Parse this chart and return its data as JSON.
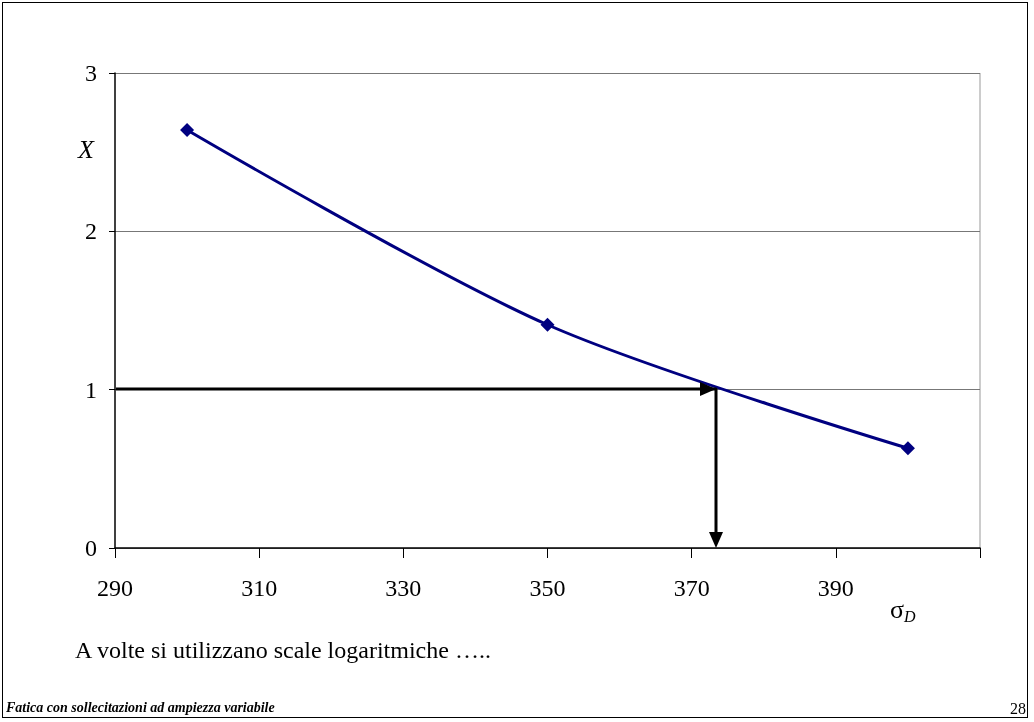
{
  "chart_data": {
    "type": "line",
    "xlabel": "σ$_{D}$",
    "ylabel": "X",
    "x": [
      300,
      350,
      400
    ],
    "series": [
      {
        "color": "#000080",
        "values": [
          2.64,
          1.41,
          0.63
        ]
      }
    ],
    "marker": "diamond",
    "line_style": "solid",
    "xlim": [
      290,
      410
    ],
    "xticks": [
      290,
      310,
      330,
      350,
      370,
      390,
      {
        "value": 410,
        "label": null
      }
    ],
    "ylim": [
      0,
      3
    ],
    "yticks": [
      0,
      1,
      2,
      3
    ],
    "grid": "y",
    "annotations": [
      "A volte si utilizzano scale logaritmiche …..",
      "Fatica con sollecitazioni ad ampiezza variabile",
      "28"
    ]
  }
}
